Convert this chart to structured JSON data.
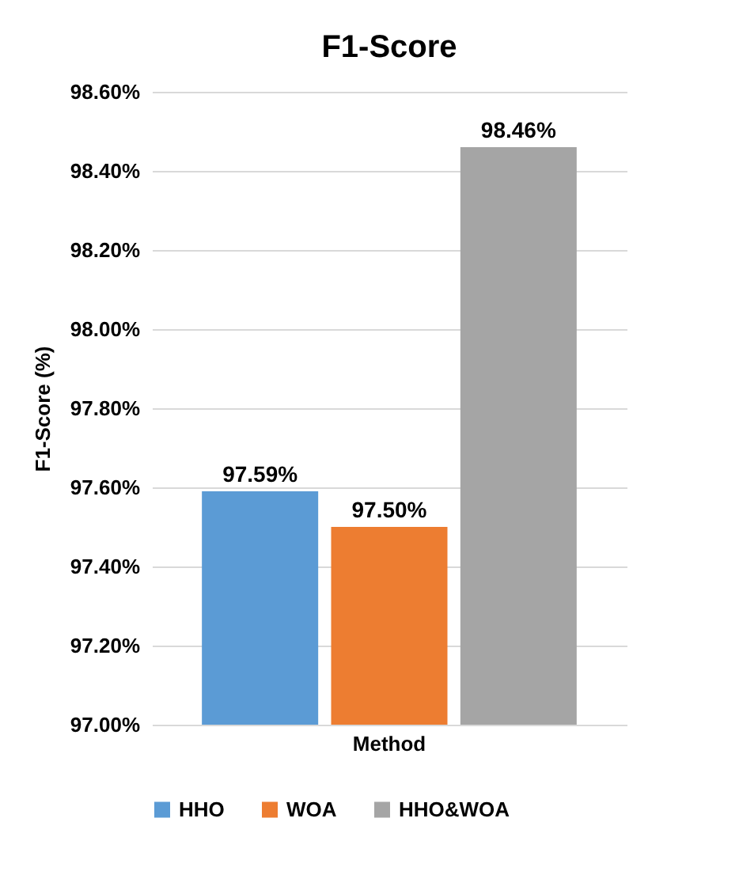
{
  "chart_data": {
    "type": "bar",
    "title": "F1-Score",
    "ylabel": "F1-Score (%)",
    "categories": [
      "Method"
    ],
    "series": [
      {
        "name": "HHO",
        "color": "#5b9bd5",
        "values": [
          97.59
        ],
        "value_labels": [
          "97.59%"
        ]
      },
      {
        "name": "WOA",
        "color": "#ed7d31",
        "values": [
          97.5
        ],
        "value_labels": [
          "97.50%"
        ]
      },
      {
        "name": "HHO&WOA",
        "color": "#a5a5a5",
        "values": [
          98.46
        ],
        "value_labels": [
          "98.46%"
        ]
      }
    ],
    "ylim": [
      97.0,
      98.6
    ],
    "yticks": [
      {
        "value": 97.0,
        "label": "97.00%"
      },
      {
        "value": 97.2,
        "label": "97.20%"
      },
      {
        "value": 97.4,
        "label": "97.40%"
      },
      {
        "value": 97.6,
        "label": "97.60%"
      },
      {
        "value": 97.8,
        "label": "97.80%"
      },
      {
        "value": 98.0,
        "label": "98.00%"
      },
      {
        "value": 98.2,
        "label": "98.20%"
      },
      {
        "value": 98.4,
        "label": "98.40%"
      },
      {
        "value": 98.6,
        "label": "98.60%"
      }
    ],
    "grid": "y",
    "legend": "bottom"
  }
}
